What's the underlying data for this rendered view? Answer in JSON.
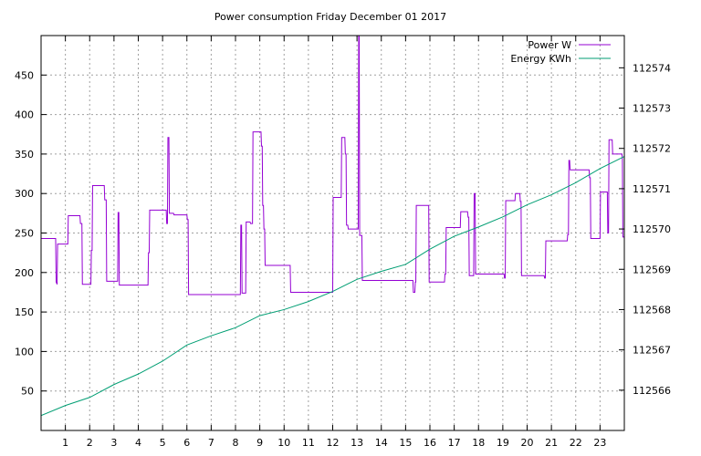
{
  "chart_data": {
    "type": "line",
    "title": "Power consumption Friday December 01 2017",
    "xlabel": "",
    "ylabel": "",
    "xlim": [
      0,
      24
    ],
    "ylim": [
      0,
      500
    ],
    "y2lim": [
      112565,
      112574.8
    ],
    "xticks": [
      1,
      2,
      3,
      4,
      5,
      6,
      7,
      8,
      9,
      10,
      11,
      12,
      13,
      14,
      15,
      16,
      17,
      18,
      19,
      20,
      21,
      22,
      23
    ],
    "yticks": [
      50,
      100,
      150,
      200,
      250,
      300,
      350,
      400,
      450
    ],
    "y2ticks": [
      112566,
      112567,
      112568,
      112569,
      112570,
      112571,
      112572,
      112573,
      112574
    ],
    "grid": true,
    "legend_position": "top-right",
    "series": [
      {
        "name": "Power W",
        "axis": "y",
        "color": "#9400d3",
        "points": [
          [
            0,
            243
          ],
          [
            0.6,
            243
          ],
          [
            0.62,
            188
          ],
          [
            0.66,
            185
          ],
          [
            0.68,
            236
          ],
          [
            1.1,
            236
          ],
          [
            1.12,
            272
          ],
          [
            1.6,
            272
          ],
          [
            1.62,
            262
          ],
          [
            1.68,
            262
          ],
          [
            1.7,
            185
          ],
          [
            2.05,
            185
          ],
          [
            2.07,
            228
          ],
          [
            2.1,
            228
          ],
          [
            2.12,
            310
          ],
          [
            2.6,
            310
          ],
          [
            2.62,
            292
          ],
          [
            2.68,
            292
          ],
          [
            2.7,
            189
          ],
          [
            3.15,
            189
          ],
          [
            3.17,
            276
          ],
          [
            3.2,
            276
          ],
          [
            3.22,
            184
          ],
          [
            4.4,
            184
          ],
          [
            4.42,
            225
          ],
          [
            4.45,
            225
          ],
          [
            4.47,
            279
          ],
          [
            5.15,
            279
          ],
          [
            5.17,
            262
          ],
          [
            5.2,
            262
          ],
          [
            5.22,
            371
          ],
          [
            5.26,
            371
          ],
          [
            5.28,
            275
          ],
          [
            5.45,
            275
          ],
          [
            5.47,
            273
          ],
          [
            6.0,
            273
          ],
          [
            6.02,
            267
          ],
          [
            6.05,
            267
          ],
          [
            6.07,
            172
          ],
          [
            8.2,
            172
          ],
          [
            8.22,
            260
          ],
          [
            8.25,
            260
          ],
          [
            8.27,
            174
          ],
          [
            8.42,
            174
          ],
          [
            8.44,
            264
          ],
          [
            8.6,
            264
          ],
          [
            8.62,
            262
          ],
          [
            8.7,
            262
          ],
          [
            8.72,
            378
          ],
          [
            9.05,
            378
          ],
          [
            9.07,
            360
          ],
          [
            9.1,
            360
          ],
          [
            9.12,
            285
          ],
          [
            9.15,
            285
          ],
          [
            9.17,
            255
          ],
          [
            9.2,
            255
          ],
          [
            9.22,
            209
          ],
          [
            10.25,
            209
          ],
          [
            10.27,
            175
          ],
          [
            12.0,
            175
          ],
          [
            12.02,
            295
          ],
          [
            12.35,
            295
          ],
          [
            12.37,
            371
          ],
          [
            12.5,
            371
          ],
          [
            12.52,
            350
          ],
          [
            12.55,
            350
          ],
          [
            12.57,
            260
          ],
          [
            12.62,
            260
          ],
          [
            12.64,
            255
          ],
          [
            13.05,
            255
          ],
          [
            13.07,
            500
          ],
          [
            13.09,
            500
          ],
          [
            13.11,
            247
          ],
          [
            13.2,
            247
          ],
          [
            13.22,
            190
          ],
          [
            15.3,
            190
          ],
          [
            15.32,
            175
          ],
          [
            15.38,
            175
          ],
          [
            15.4,
            188
          ],
          [
            15.42,
            188
          ],
          [
            15.44,
            285
          ],
          [
            15.95,
            285
          ],
          [
            15.97,
            188
          ],
          [
            16.6,
            188
          ],
          [
            16.62,
            198
          ],
          [
            16.65,
            198
          ],
          [
            16.67,
            257
          ],
          [
            17.25,
            257
          ],
          [
            17.27,
            277
          ],
          [
            17.55,
            277
          ],
          [
            17.57,
            270
          ],
          [
            17.6,
            270
          ],
          [
            17.62,
            196
          ],
          [
            17.8,
            196
          ],
          [
            17.82,
            300
          ],
          [
            17.86,
            300
          ],
          [
            17.88,
            198
          ],
          [
            19.05,
            198
          ],
          [
            19.07,
            193
          ],
          [
            19.1,
            193
          ],
          [
            19.12,
            291
          ],
          [
            19.5,
            291
          ],
          [
            19.52,
            300
          ],
          [
            19.7,
            300
          ],
          [
            19.72,
            290
          ],
          [
            19.75,
            290
          ],
          [
            19.77,
            196
          ],
          [
            20.7,
            196
          ],
          [
            20.72,
            193
          ],
          [
            20.75,
            193
          ],
          [
            20.77,
            240
          ],
          [
            21.65,
            240
          ],
          [
            21.67,
            248
          ],
          [
            21.7,
            248
          ],
          [
            21.72,
            342
          ],
          [
            21.75,
            342
          ],
          [
            21.77,
            330
          ],
          [
            22.55,
            330
          ],
          [
            22.57,
            320
          ],
          [
            22.6,
            320
          ],
          [
            22.62,
            243
          ],
          [
            23.0,
            243
          ],
          [
            23.02,
            302
          ],
          [
            23.3,
            302
          ],
          [
            23.32,
            250
          ],
          [
            23.35,
            250
          ],
          [
            23.37,
            368
          ],
          [
            23.5,
            368
          ],
          [
            23.52,
            350
          ],
          [
            23.9,
            350
          ],
          [
            23.92,
            345
          ],
          [
            23.94,
            245
          ],
          [
            24,
            245
          ]
        ]
      },
      {
        "name": "Energy KWh",
        "axis": "y2",
        "color": "#009e73",
        "points": [
          [
            0,
            112565.37
          ],
          [
            1,
            112565.62
          ],
          [
            2,
            112565.82
          ],
          [
            3,
            112566.14
          ],
          [
            4,
            112566.4
          ],
          [
            5,
            112566.72
          ],
          [
            6,
            112567.12
          ],
          [
            7,
            112567.35
          ],
          [
            8,
            112567.55
          ],
          [
            9,
            112567.85
          ],
          [
            10,
            112568.0
          ],
          [
            11,
            112568.2
          ],
          [
            12,
            112568.45
          ],
          [
            13,
            112568.75
          ],
          [
            14,
            112568.95
          ],
          [
            15,
            112569.12
          ],
          [
            16,
            112569.5
          ],
          [
            17,
            112569.82
          ],
          [
            18,
            112570.05
          ],
          [
            19,
            112570.3
          ],
          [
            20,
            112570.6
          ],
          [
            21,
            112570.85
          ],
          [
            22,
            112571.15
          ],
          [
            23,
            112571.5
          ],
          [
            24,
            112571.8
          ]
        ]
      }
    ]
  }
}
